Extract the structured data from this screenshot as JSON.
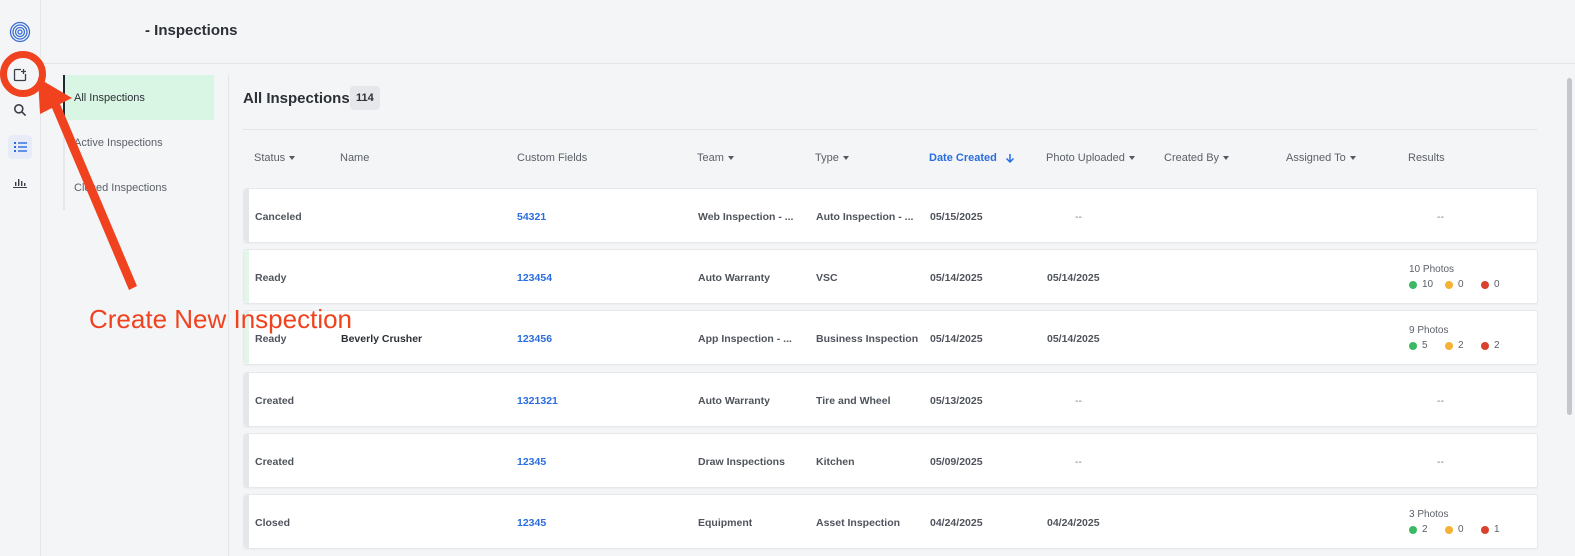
{
  "header": {
    "title": "- Inspections"
  },
  "rail": {
    "icons": [
      "logo-icon",
      "create-inspection-icon",
      "search-icon",
      "list-icon",
      "chart-icon"
    ]
  },
  "subnav": {
    "items": [
      {
        "label": "All Inspections",
        "active": true
      },
      {
        "label": "Active Inspections",
        "active": false
      },
      {
        "label": "Closed Inspections",
        "active": false
      }
    ]
  },
  "main": {
    "title": "All Inspections",
    "count": "114"
  },
  "table": {
    "columns": [
      "Status",
      "Name",
      "Custom Fields",
      "Team",
      "Type",
      "Date Created",
      "Photo Uploaded",
      "Created By",
      "Assigned To",
      "Results"
    ],
    "sorted_column": "Date Created",
    "rows": [
      {
        "status": "Canceled",
        "name": "",
        "custom": "54321",
        "team": "Web Inspection - ...",
        "type": "Auto Inspection - ...",
        "created": "05/15/2025",
        "uploaded": "--",
        "results": "--"
      },
      {
        "status": "Ready",
        "name": "",
        "custom": "123454",
        "team": "Auto Warranty",
        "type": "VSC",
        "created": "05/14/2025",
        "uploaded": "05/14/2025",
        "photos": "10 Photos",
        "green": "10",
        "yellow": "0",
        "red": "0"
      },
      {
        "status": "Ready",
        "name": "Beverly Crusher",
        "custom": "123456",
        "team": "App Inspection - ...",
        "type": "Business Inspection",
        "created": "05/14/2025",
        "uploaded": "05/14/2025",
        "photos": "9 Photos",
        "green": "5",
        "yellow": "2",
        "red": "2"
      },
      {
        "status": "Created",
        "name": "",
        "custom": "1321321",
        "team": "Auto Warranty",
        "type": "Tire and Wheel",
        "created": "05/13/2025",
        "uploaded": "--",
        "results": "--"
      },
      {
        "status": "Created",
        "name": "",
        "custom": "12345",
        "team": "Draw Inspections",
        "type": "Kitchen",
        "created": "05/09/2025",
        "uploaded": "--",
        "results": "--"
      },
      {
        "status": "Closed",
        "name": "",
        "custom": "12345",
        "team": "Equipment",
        "type": "Asset Inspection",
        "created": "04/24/2025",
        "uploaded": "04/24/2025",
        "photos": "3 Photos",
        "green": "2",
        "yellow": "0",
        "red": "1"
      }
    ]
  },
  "colors": {
    "accent": "#2a6de0",
    "active_nav": "#d9f5e3",
    "annotation": "#f0421f",
    "green": "#3ab864",
    "yellow": "#f5b233",
    "red": "#d9412c"
  },
  "annotation": {
    "text": "Create New Inspection"
  }
}
